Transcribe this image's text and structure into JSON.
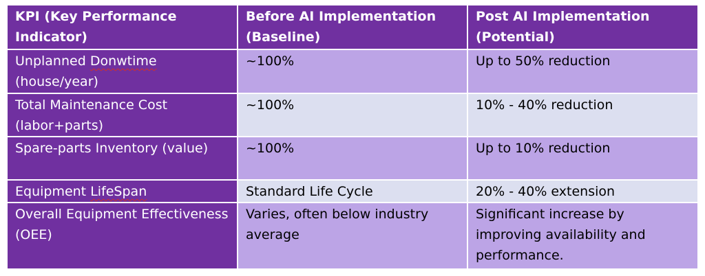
{
  "table": {
    "headers": [
      "KPI (Key Performance Indicator)",
      "Before AI Implementation (Baseline)",
      "Post AI Implementation (Potential)"
    ],
    "rows": [
      {
        "kpi_a": "Unplanned ",
        "kpi_flag": "Donwtime",
        "kpi_b": " (house/year)",
        "before": "~100%",
        "after": "Up to 50% reduction"
      },
      {
        "kpi_a": "Total Maintenance Cost (labor+parts)",
        "kpi_flag": "",
        "kpi_b": "",
        "before": "~100%",
        "after": "10% - 40% reduction"
      },
      {
        "kpi_a": "Spare-parts Inventory (value)",
        "kpi_flag": "",
        "kpi_b": "",
        "before": "~100%",
        "after": "Up to 10% reduction"
      },
      {
        "kpi_a": "Equipment ",
        "kpi_flag": "LifeSpan",
        "kpi_b": "",
        "before": "Standard Life Cycle",
        "after": "20% - 40% extension"
      },
      {
        "kpi_a": "Overall Equipment Effectiveness (OEE)",
        "kpi_flag": "",
        "kpi_b": "",
        "before": "Varies, often below industry average",
        "after": "Significant increase by improving availability and performance."
      }
    ]
  },
  "colors": {
    "header_bg": "#7030a0",
    "band_dark": "#bca4e6",
    "band_light": "#dcdff0",
    "spellcheck_underline": "#d0302c"
  }
}
